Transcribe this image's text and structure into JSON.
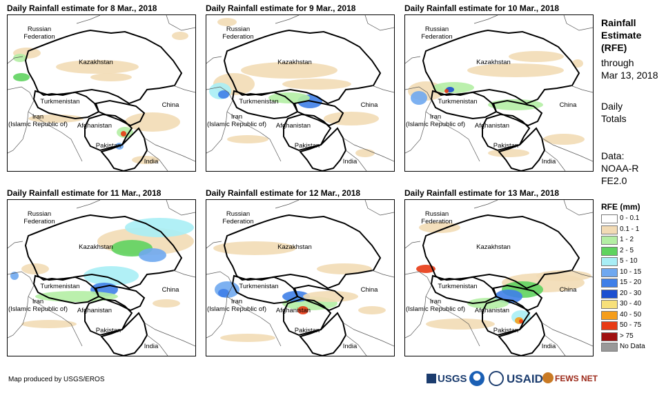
{
  "panels": [
    {
      "title": "Daily Rainfall estimate for 8 Mar., 2018"
    },
    {
      "title": "Daily Rainfall estimate for 9 Mar., 2018"
    },
    {
      "title": "Daily Rainfall estimate for 10 Mar., 2018"
    },
    {
      "title": "Daily Rainfall estimate for 11 Mar., 2018"
    },
    {
      "title": "Daily Rainfall estimate for 12 Mar., 2018"
    },
    {
      "title": "Daily Rainfall estimate for 13 Mar., 2018"
    }
  ],
  "countries": {
    "russia": "Russian Federation",
    "kazakhstan": "Kazakhstan",
    "turkmenistan": "Turkmenistan",
    "iran": "Iran (Islamic Republic of)",
    "afghanistan": "Afghanistan",
    "china": "China",
    "pakistan": "Pakistan",
    "india": "India"
  },
  "sidebar": {
    "title": "Rainfall Estimate (RFE)",
    "through": "through",
    "date": "Mar 13, 2018",
    "totals": "Daily Totals",
    "data_label": "Data:",
    "data_source": "NOAA-RFE2.0"
  },
  "legend": {
    "title": "RFE (mm)",
    "items": [
      {
        "label": "0 - 0.1",
        "color": "#ffffff"
      },
      {
        "label": "0.1 - 1",
        "color": "#f2dbb5"
      },
      {
        "label": "1 - 2",
        "color": "#b4eea4"
      },
      {
        "label": "2 - 5",
        "color": "#5fd35f"
      },
      {
        "label": "5 - 10",
        "color": "#a8eef5"
      },
      {
        "label": "10 - 15",
        "color": "#6fa8f0"
      },
      {
        "label": "15 - 20",
        "color": "#3f7fe8"
      },
      {
        "label": "20 - 30",
        "color": "#1c4fd0"
      },
      {
        "label": "30 - 40",
        "color": "#f7e07a"
      },
      {
        "label": "40 - 50",
        "color": "#f59d1a"
      },
      {
        "label": "50 - 75",
        "color": "#e83a14"
      },
      {
        "label": "> 75",
        "color": "#a01010"
      },
      {
        "label": "No Data",
        "color": "#999999"
      }
    ]
  },
  "credit": "Map produced by USGS/EROS",
  "logos": {
    "usgs": "USGS",
    "usaid": "USAID",
    "fews": "FEWS NET"
  }
}
